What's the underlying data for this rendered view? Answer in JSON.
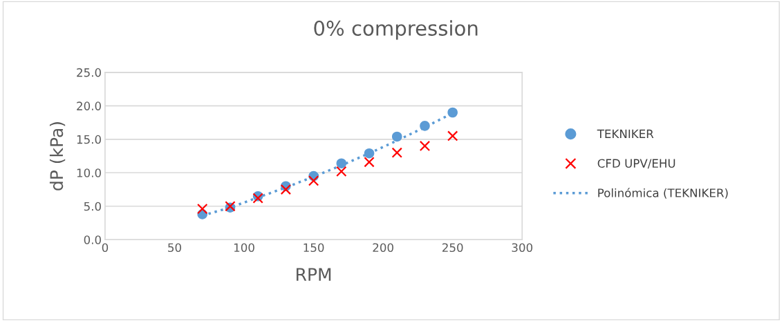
{
  "chart_data": {
    "type": "scatter",
    "title": "0% compression",
    "xlabel": "RPM",
    "ylabel": "dP (kPa)",
    "xlim": [
      0,
      300
    ],
    "xticks": [
      0,
      50,
      100,
      150,
      200,
      250,
      300
    ],
    "ylim": [
      0,
      25
    ],
    "yticks": [
      {
        "value": 0,
        "label": "0.0"
      },
      {
        "value": 5,
        "label": "5.0"
      },
      {
        "value": 10,
        "label": "10.0"
      },
      {
        "value": 15,
        "label": "15.0"
      },
      {
        "value": 20,
        "label": "20.0"
      },
      {
        "value": 25,
        "label": "25.0"
      }
    ],
    "grid": "y",
    "legend": "right",
    "x": [
      70,
      90,
      110,
      130,
      150,
      170,
      190,
      210,
      230,
      250
    ],
    "series": [
      {
        "name": "TEKNIKER",
        "color": "#5b9bd5",
        "marker": "circle",
        "values": [
          3.8,
          4.8,
          6.5,
          8.0,
          9.5,
          11.4,
          12.9,
          15.4,
          17.0,
          19.0
        ]
      },
      {
        "name": "CFD UPV/EHU",
        "color": "#ff0000",
        "marker": "cross",
        "values": [
          4.6,
          5.0,
          6.2,
          7.5,
          8.8,
          10.2,
          11.6,
          13.0,
          14.0,
          15.5
        ]
      },
      {
        "name": "Polinómica (TEKNIKER)",
        "type": "line",
        "color": "#5b9bd5",
        "line_style": "dotted",
        "marker": "none",
        "values": [
          3.6,
          4.8,
          6.3,
          7.8,
          9.4,
          11.1,
          12.9,
          14.8,
          16.8,
          18.9
        ]
      }
    ]
  }
}
